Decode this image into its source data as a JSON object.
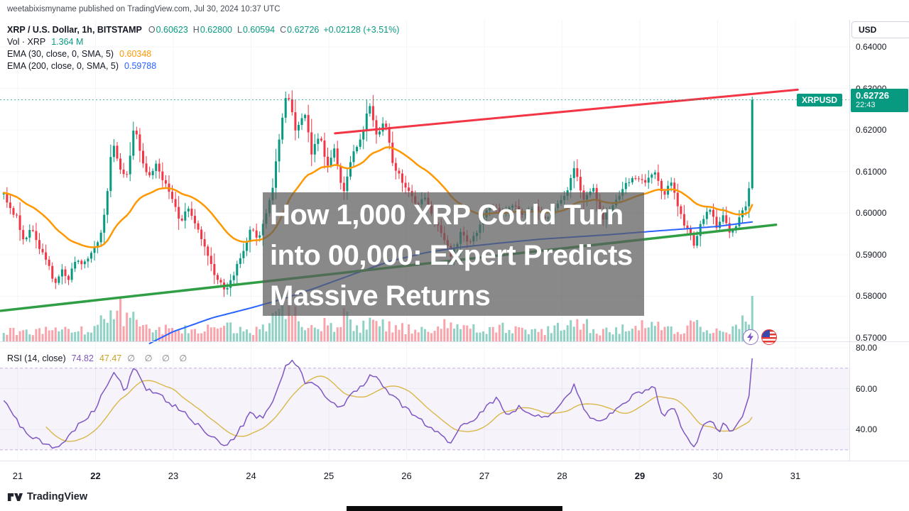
{
  "meta": {
    "published_line": "weetabixismyname published on TradingView.com, Jul 30, 2024 10:37 UTC"
  },
  "legend": {
    "symbol": "XRP / U.S. Dollar, 1h, BITSTAMP",
    "ohlc": {
      "o_label": "O",
      "o": "0.60623",
      "h_label": "H",
      "h": "0.62800",
      "l_label": "L",
      "l": "0.60594",
      "c_label": "C",
      "c": "0.62726",
      "change": "+0.02128 (+3.51%)"
    },
    "vol_label": "Vol · XRP",
    "vol_value": "1.364 M",
    "ema30_label": "EMA (30, close, 0, SMA, 5)",
    "ema30_value": "0.60348",
    "ema200_label": "EMA (200, close, 0, SMA, 5)",
    "ema200_value": "0.59788"
  },
  "rsi_legend": {
    "label": "RSI (14, close)",
    "value": "74.82",
    "ma_value": "47.47",
    "empty": "∅ ∅ ∅ ∅"
  },
  "price_axis": {
    "currency": "USD",
    "symbol_badge": "XRPUSD",
    "last_price_label": "0.62726",
    "countdown": "22:43",
    "ticks": [
      {
        "label": "0.64000",
        "price": 0.64
      },
      {
        "label": "0.63000",
        "price": 0.63
      },
      {
        "label": "0.62000",
        "price": 0.62
      },
      {
        "label": "0.61000",
        "price": 0.61
      },
      {
        "label": "0.60000",
        "price": 0.6
      },
      {
        "label": "0.59000",
        "price": 0.59
      },
      {
        "label": "0.58000",
        "price": 0.58
      },
      {
        "label": "0.57000",
        "price": 0.57
      }
    ]
  },
  "rsi_axis": {
    "ticks": [
      {
        "label": "80.00",
        "value": 80
      },
      {
        "label": "60.00",
        "value": 60
      },
      {
        "label": "40.00",
        "value": 40
      }
    ]
  },
  "time_axis": {
    "labels": [
      {
        "label": "21",
        "t": 21,
        "bold": false
      },
      {
        "label": "22",
        "t": 22,
        "bold": true
      },
      {
        "label": "23",
        "t": 23,
        "bold": false
      },
      {
        "label": "24",
        "t": 24,
        "bold": false
      },
      {
        "label": "25",
        "t": 25,
        "bold": false
      },
      {
        "label": "26",
        "t": 26,
        "bold": false
      },
      {
        "label": "27",
        "t": 27,
        "bold": false
      },
      {
        "label": "28",
        "t": 28,
        "bold": false
      },
      {
        "label": "29",
        "t": 29,
        "bold": true
      },
      {
        "label": "30",
        "t": 30,
        "bold": false
      },
      {
        "label": "31",
        "t": 31,
        "bold": false
      }
    ]
  },
  "overlay_title": {
    "lines": [
      "How 1,000 XRP Could Turn",
      "into 00,000: Expert Predicts",
      "Massive Returns"
    ]
  },
  "footer": {
    "brand": "TradingView"
  },
  "icons": {
    "quick_trade": "lightning-icon",
    "exchange": "us-flag-icon",
    "logo": "tradingview-logo-icon"
  },
  "colors": {
    "up": "#089981",
    "down": "#f23645",
    "ema30": "#ff9800",
    "ema200": "#2962ff",
    "rsi": "#7e57c2",
    "rsi_ma": "#d9b849",
    "support": "#2f9e44",
    "resistance": "#f23645",
    "axis_text": "#131722",
    "muted": "#787b86",
    "separator": "#e0e3eb",
    "grid": "#f2f5f9",
    "badge": "#089981"
  },
  "chart_data": {
    "type": "candlestick",
    "symbol": "XRP/USD",
    "exchange": "BITSTAMP",
    "interval": "1h",
    "x_unit": "day of July 2024",
    "x_domain_days": [
      20.82,
      31.05
    ],
    "ylim": [
      0.57,
      0.64
    ],
    "grid": "faint",
    "last": {
      "open": 0.60623,
      "high": 0.628,
      "low": 0.60594,
      "close": 0.62726,
      "change": 0.02128,
      "change_pct": 3.51,
      "volume_xrp": 1364000
    },
    "ema30_last": 0.60348,
    "ema200_last": 0.59788,
    "rsi_last": 74.82,
    "rsi_ma_last": 47.47,
    "rsi_bands": [
      70,
      30
    ],
    "close_path": [
      [
        20.82,
        0.6043
      ],
      [
        20.92,
        0.6005
      ],
      [
        21.0,
        0.5985
      ],
      [
        21.08,
        0.5925
      ],
      [
        21.17,
        0.5975
      ],
      [
        21.28,
        0.5915
      ],
      [
        21.38,
        0.5885
      ],
      [
        21.48,
        0.5825
      ],
      [
        21.56,
        0.5865
      ],
      [
        21.65,
        0.5835
      ],
      [
        21.75,
        0.5895
      ],
      [
        21.85,
        0.5875
      ],
      [
        21.95,
        0.5905
      ],
      [
        22.05,
        0.5935
      ],
      [
        22.13,
        0.6015
      ],
      [
        22.22,
        0.6175
      ],
      [
        22.3,
        0.6115
      ],
      [
        22.4,
        0.6085
      ],
      [
        22.5,
        0.6215
      ],
      [
        22.58,
        0.6135
      ],
      [
        22.68,
        0.6085
      ],
      [
        22.78,
        0.6125
      ],
      [
        22.88,
        0.6075
      ],
      [
        23.0,
        0.6035
      ],
      [
        23.08,
        0.5975
      ],
      [
        23.18,
        0.6015
      ],
      [
        23.3,
        0.5965
      ],
      [
        23.42,
        0.5905
      ],
      [
        23.55,
        0.5845
      ],
      [
        23.68,
        0.5815
      ],
      [
        23.8,
        0.5865
      ],
      [
        23.92,
        0.5915
      ],
      [
        24.0,
        0.5965
      ],
      [
        24.08,
        0.5935
      ],
      [
        24.18,
        0.5985
      ],
      [
        24.28,
        0.6065
      ],
      [
        24.38,
        0.6205
      ],
      [
        24.45,
        0.6285
      ],
      [
        24.52,
        0.6255
      ],
      [
        24.58,
        0.6195
      ],
      [
        24.68,
        0.6245
      ],
      [
        24.78,
        0.6145
      ],
      [
        24.88,
        0.6185
      ],
      [
        24.98,
        0.6115
      ],
      [
        25.08,
        0.6155
      ],
      [
        25.18,
        0.6045
      ],
      [
        25.3,
        0.6135
      ],
      [
        25.42,
        0.6185
      ],
      [
        25.53,
        0.6265
      ],
      [
        25.62,
        0.6185
      ],
      [
        25.72,
        0.6225
      ],
      [
        25.82,
        0.6125
      ],
      [
        25.92,
        0.6085
      ],
      [
        26.02,
        0.6055
      ],
      [
        26.12,
        0.6015
      ],
      [
        26.22,
        0.6045
      ],
      [
        26.35,
        0.5985
      ],
      [
        26.48,
        0.5935
      ],
      [
        26.58,
        0.5895
      ],
      [
        26.7,
        0.5955
      ],
      [
        26.82,
        0.5925
      ],
      [
        26.95,
        0.5975
      ],
      [
        27.08,
        0.6025
      ],
      [
        27.2,
        0.5995
      ],
      [
        27.35,
        0.6025
      ],
      [
        27.5,
        0.599
      ],
      [
        27.65,
        0.6015
      ],
      [
        27.8,
        0.5985
      ],
      [
        27.95,
        0.6025
      ],
      [
        28.08,
        0.6055
      ],
      [
        28.16,
        0.6115
      ],
      [
        28.26,
        0.6035
      ],
      [
        28.4,
        0.6065
      ],
      [
        28.52,
        0.5985
      ],
      [
        28.65,
        0.6015
      ],
      [
        28.8,
        0.6065
      ],
      [
        28.95,
        0.6085
      ],
      [
        29.05,
        0.6075
      ],
      [
        29.18,
        0.6105
      ],
      [
        29.3,
        0.6045
      ],
      [
        29.42,
        0.6075
      ],
      [
        29.52,
        0.5995
      ],
      [
        29.62,
        0.5955
      ],
      [
        29.7,
        0.5925
      ],
      [
        29.8,
        0.5985
      ],
      [
        29.9,
        0.6005
      ],
      [
        30.0,
        0.5965
      ],
      [
        30.08,
        0.5995
      ],
      [
        30.17,
        0.5945
      ],
      [
        30.26,
        0.5985
      ],
      [
        30.34,
        0.6015
      ],
      [
        30.4,
        0.6035
      ],
      [
        30.44,
        0.6273
      ],
      [
        30.46,
        0.62726
      ]
    ],
    "volume_profile": [
      [
        20.82,
        0.18
      ],
      [
        21.05,
        0.3
      ],
      [
        21.2,
        0.22
      ],
      [
        21.45,
        0.35
      ],
      [
        21.7,
        0.25
      ],
      [
        22.0,
        0.3
      ],
      [
        22.15,
        0.8
      ],
      [
        22.25,
        0.9
      ],
      [
        22.4,
        0.5
      ],
      [
        22.5,
        0.62
      ],
      [
        22.7,
        0.35
      ],
      [
        23.0,
        0.28
      ],
      [
        23.3,
        0.25
      ],
      [
        23.55,
        0.45
      ],
      [
        23.7,
        0.38
      ],
      [
        24.0,
        0.25
      ],
      [
        24.2,
        0.3
      ],
      [
        24.4,
        0.8
      ],
      [
        24.5,
        0.72
      ],
      [
        24.7,
        0.45
      ],
      [
        24.9,
        0.38
      ],
      [
        25.1,
        0.42
      ],
      [
        25.2,
        0.55
      ],
      [
        25.4,
        0.35
      ],
      [
        25.55,
        0.5
      ],
      [
        25.8,
        0.38
      ],
      [
        26.0,
        0.3
      ],
      [
        26.3,
        0.28
      ],
      [
        26.5,
        0.45
      ],
      [
        26.7,
        0.3
      ],
      [
        27.0,
        0.28
      ],
      [
        27.2,
        0.32
      ],
      [
        27.5,
        0.22
      ],
      [
        27.8,
        0.25
      ],
      [
        28.1,
        0.4
      ],
      [
        28.2,
        0.45
      ],
      [
        28.5,
        0.25
      ],
      [
        28.8,
        0.28
      ],
      [
        29.0,
        0.35
      ],
      [
        29.2,
        0.4
      ],
      [
        29.5,
        0.28
      ],
      [
        29.7,
        0.38
      ],
      [
        30.0,
        0.25
      ],
      [
        30.2,
        0.28
      ],
      [
        30.38,
        0.55
      ],
      [
        30.44,
        1.0
      ],
      [
        30.46,
        0.85
      ]
    ],
    "rsi_path": [
      [
        20.82,
        55
      ],
      [
        21.0,
        44
      ],
      [
        21.1,
        38
      ],
      [
        21.3,
        34
      ],
      [
        21.5,
        30
      ],
      [
        21.65,
        36
      ],
      [
        21.8,
        43
      ],
      [
        22.0,
        50
      ],
      [
        22.15,
        62
      ],
      [
        22.25,
        68
      ],
      [
        22.38,
        58
      ],
      [
        22.5,
        71
      ],
      [
        22.65,
        60
      ],
      [
        22.8,
        57
      ],
      [
        23.0,
        52
      ],
      [
        23.2,
        46
      ],
      [
        23.45,
        38
      ],
      [
        23.68,
        31
      ],
      [
        23.85,
        40
      ],
      [
        24.0,
        48
      ],
      [
        24.15,
        45
      ],
      [
        24.3,
        55
      ],
      [
        24.45,
        72
      ],
      [
        24.55,
        74
      ],
      [
        24.7,
        63
      ],
      [
        24.85,
        61
      ],
      [
        25.0,
        54
      ],
      [
        25.15,
        50
      ],
      [
        25.3,
        57
      ],
      [
        25.45,
        62
      ],
      [
        25.55,
        68
      ],
      [
        25.7,
        61
      ],
      [
        25.85,
        55
      ],
      [
        26.0,
        50
      ],
      [
        26.15,
        45
      ],
      [
        26.35,
        40
      ],
      [
        26.55,
        33
      ],
      [
        26.7,
        42
      ],
      [
        26.85,
        44
      ],
      [
        27.0,
        50
      ],
      [
        27.15,
        55
      ],
      [
        27.3,
        47
      ],
      [
        27.45,
        51
      ],
      [
        27.6,
        48
      ],
      [
        27.75,
        45
      ],
      [
        27.9,
        49
      ],
      [
        28.05,
        55
      ],
      [
        28.16,
        62
      ],
      [
        28.3,
        48
      ],
      [
        28.45,
        44
      ],
      [
        28.6,
        47
      ],
      [
        28.75,
        51
      ],
      [
        28.9,
        56
      ],
      [
        29.05,
        59
      ],
      [
        29.18,
        62
      ],
      [
        29.3,
        46
      ],
      [
        29.42,
        52
      ],
      [
        29.55,
        40
      ],
      [
        29.7,
        30
      ],
      [
        29.82,
        42
      ],
      [
        29.92,
        45
      ],
      [
        30.0,
        38
      ],
      [
        30.1,
        44
      ],
      [
        30.18,
        37
      ],
      [
        30.26,
        44
      ],
      [
        30.34,
        48
      ],
      [
        30.4,
        55
      ],
      [
        30.44,
        74
      ],
      [
        30.46,
        74.82
      ]
    ],
    "ema200_path": [
      [
        22.68,
        0.5685
      ],
      [
        23.0,
        0.5715
      ],
      [
        23.5,
        0.5748
      ],
      [
        24.0,
        0.5772
      ],
      [
        24.4,
        0.5793
      ],
      [
        24.8,
        0.5818
      ],
      [
        25.3,
        0.5852
      ],
      [
        25.8,
        0.5885
      ],
      [
        26.25,
        0.5905
      ],
      [
        26.7,
        0.5918
      ],
      [
        27.2,
        0.5928
      ],
      [
        27.7,
        0.5937
      ],
      [
        28.1,
        0.5942
      ],
      [
        28.6,
        0.5948
      ],
      [
        29.0,
        0.5954
      ],
      [
        29.5,
        0.5961
      ],
      [
        30.0,
        0.5968
      ],
      [
        30.45,
        0.5979
      ]
    ],
    "trendlines": [
      {
        "name": "resistance-line",
        "from": [
          25.08,
          0.6192
        ],
        "to": [
          31.03,
          0.6297
        ],
        "color": "#f23645",
        "width": 3
      },
      {
        "name": "support-line",
        "from": [
          20.78,
          0.5765
        ],
        "to": [
          30.75,
          0.5972
        ],
        "color": "#2f9e44",
        "width": 3.5
      }
    ]
  }
}
